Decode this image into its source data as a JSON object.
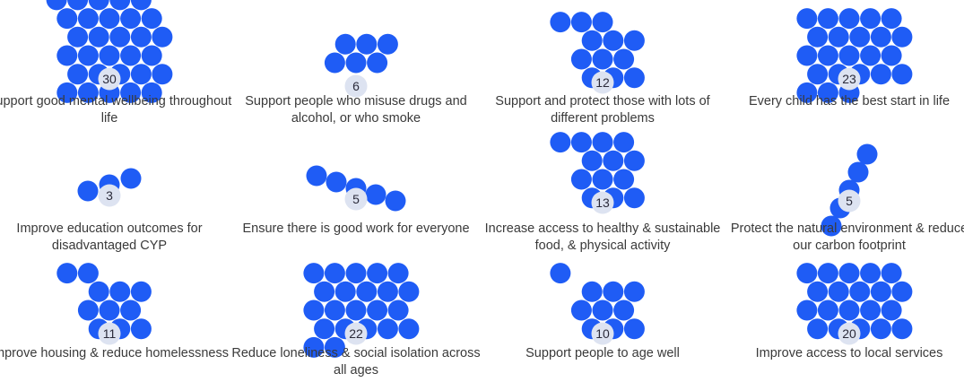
{
  "chart_data": {
    "type": "bubble-cluster",
    "colors": {
      "bubble": "#1f5cf5",
      "count_badge": "#dde3f1",
      "label_text": "#3a3a3a"
    },
    "categories": [
      {
        "label": "Support good mental wellbeing throughout life",
        "value": 30
      },
      {
        "label": "Support people who misuse drugs and alcohol, or who smoke",
        "value": 6
      },
      {
        "label": "Support and protect those with lots of different problems",
        "value": 12
      },
      {
        "label": "Every child has the best start in life",
        "value": 23
      },
      {
        "label": "Improve education outcomes for disadvantaged CYP",
        "value": 3
      },
      {
        "label": "Ensure there is good work for everyone",
        "value": 5
      },
      {
        "label": "Increase access to healthy & sustainable food, & physical activity",
        "value": 13
      },
      {
        "label": "Protect the natural environment & reduce our carbon footprint",
        "value": 5
      },
      {
        "label": "Improve housing & reduce homelessness",
        "value": 11
      },
      {
        "label": "Reduce loneliness & social isolation across all ages",
        "value": 22
      },
      {
        "label": "Support people to age well",
        "value": 10
      },
      {
        "label": "Improve access to local services",
        "value": 20
      }
    ]
  }
}
